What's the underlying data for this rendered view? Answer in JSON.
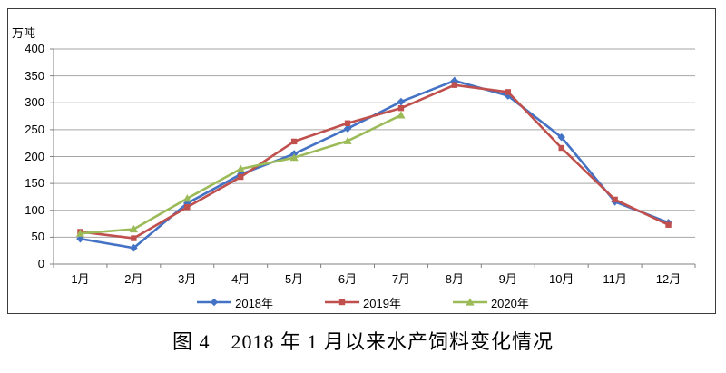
{
  "figure": {
    "unit_label": "万吨",
    "caption": "图 4　2018 年 1 月以来水产饲料变化情况"
  },
  "colors": {
    "grid": "#a6a6a6",
    "axis": "#808080",
    "frame": "#3a3a3a",
    "text": "#000000"
  },
  "chart_data": {
    "type": "line",
    "title": "",
    "ylabel": "万吨",
    "xlabel": "",
    "ylim": [
      0,
      400
    ],
    "ytick_step": 50,
    "yticks": [
      400,
      350,
      300,
      250,
      200,
      150,
      100,
      50,
      0
    ],
    "grid": true,
    "legend_position": "bottom",
    "categories": [
      "1月",
      "2月",
      "3月",
      "4月",
      "5月",
      "6月",
      "7月",
      "8月",
      "9月",
      "10月",
      "11月",
      "12月"
    ],
    "series": [
      {
        "name": "2018年",
        "color": "#4472c4",
        "marker": "diamond",
        "values": [
          47,
          30,
          113,
          167,
          205,
          252,
          302,
          341,
          313,
          236,
          116,
          77
        ]
      },
      {
        "name": "2019年",
        "color": "#c0504d",
        "marker": "square",
        "values": [
          60,
          48,
          106,
          162,
          228,
          262,
          290,
          333,
          320,
          216,
          120,
          73
        ]
      },
      {
        "name": "2020年",
        "color": "#9bbb59",
        "marker": "triangle",
        "values": [
          57,
          65,
          122,
          177,
          198,
          229,
          277
        ]
      }
    ]
  }
}
